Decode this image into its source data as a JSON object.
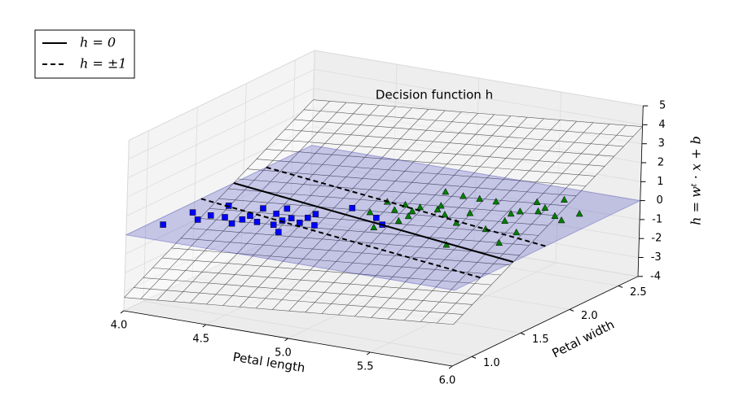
{
  "chart_data": {
    "type": "scatter3d",
    "title": "Decision function h",
    "xlabel": "Petal length",
    "ylabel": "Petal width",
    "zlabel": "h = wᵗ · x + b",
    "xlim": [
      4,
      6
    ],
    "ylim": [
      0.8,
      2.7
    ],
    "zlim": [
      -4,
      5
    ],
    "xticks": [
      {
        "value": 4,
        "label": "4.0"
      },
      {
        "value": 4.5,
        "label": "4.5"
      },
      {
        "value": 5,
        "label": "5.0"
      },
      {
        "value": 5.5,
        "label": "5.5"
      },
      {
        "value": 6,
        "label": "6.0"
      }
    ],
    "yticks": [
      {
        "value": 1,
        "label": "1.0"
      },
      {
        "value": 1.5,
        "label": "1.5"
      },
      {
        "value": 2,
        "label": "2.0"
      },
      {
        "value": 2.5,
        "label": "2.5"
      }
    ],
    "zticks": [
      -4,
      -3,
      -2,
      -1,
      0,
      1,
      2,
      3,
      4,
      5
    ],
    "surface": {
      "w": [
        0.75,
        3
      ],
      "b": -8.7,
      "color": "#555555"
    },
    "plane_color": "#2020b0",
    "contours": [
      {
        "label": "h = 0",
        "levels": [
          0
        ],
        "style": "solid"
      },
      {
        "label": "h = ±1",
        "levels": [
          -1,
          1
        ],
        "style": "dashed"
      }
    ],
    "legend": "upper left",
    "series": [
      {
        "marker": "square",
        "color": "#0000ff",
        "x": [
          4.07,
          4.09,
          4.18,
          4.2,
          4.28,
          4.19,
          4.37,
          4.38,
          4.38,
          4.47,
          4.37,
          4.57,
          4.48,
          4.66,
          4.57,
          4.48,
          4.59,
          4.67,
          4.66,
          4.66,
          4.76,
          4.77,
          4.97,
          5.06
        ],
        "y": [
          1.06,
          1.33,
          1.23,
          1.33,
          1.34,
          1.53,
          1.26,
          1.35,
          1.43,
          1.35,
          1.58,
          1.35,
          1.53,
          1.25,
          1.44,
          1.64,
          1.5,
          1.45,
          1.55,
          1.63,
          1.45,
          1.82,
          1.73,
          1.64
        ]
      },
      {
        "marker": "triangle",
        "color": "#008000",
        "x": [
          4.89,
          5.05,
          4.87,
          4.98,
          5.1,
          4.98,
          5.1,
          5.07,
          5.07,
          5.17,
          5.15,
          5.25,
          5.04,
          5.54,
          5.38,
          5.16,
          5.35,
          5.26,
          5.57,
          5.36,
          5.76,
          5.58,
          5.54,
          5.74,
          5.56,
          5.55,
          5.64,
          5.64,
          5.76,
          5.83,
          5.65,
          5.85
        ],
        "y": [
          1.8,
          1.57,
          2.01,
          1.9,
          1.74,
          2.01,
          1.84,
          1.93,
          2.01,
          2.02,
          2.09,
          1.96,
          2.32,
          1.49,
          1.86,
          2.3,
          2.05,
          2.3,
          1.84,
          2.3,
          1.66,
          2.02,
          2.15,
          1.87,
          2.21,
          2.4,
          2.26,
          2.33,
          2.23,
          2.18,
          2.51,
          2.33
        ]
      }
    ]
  }
}
